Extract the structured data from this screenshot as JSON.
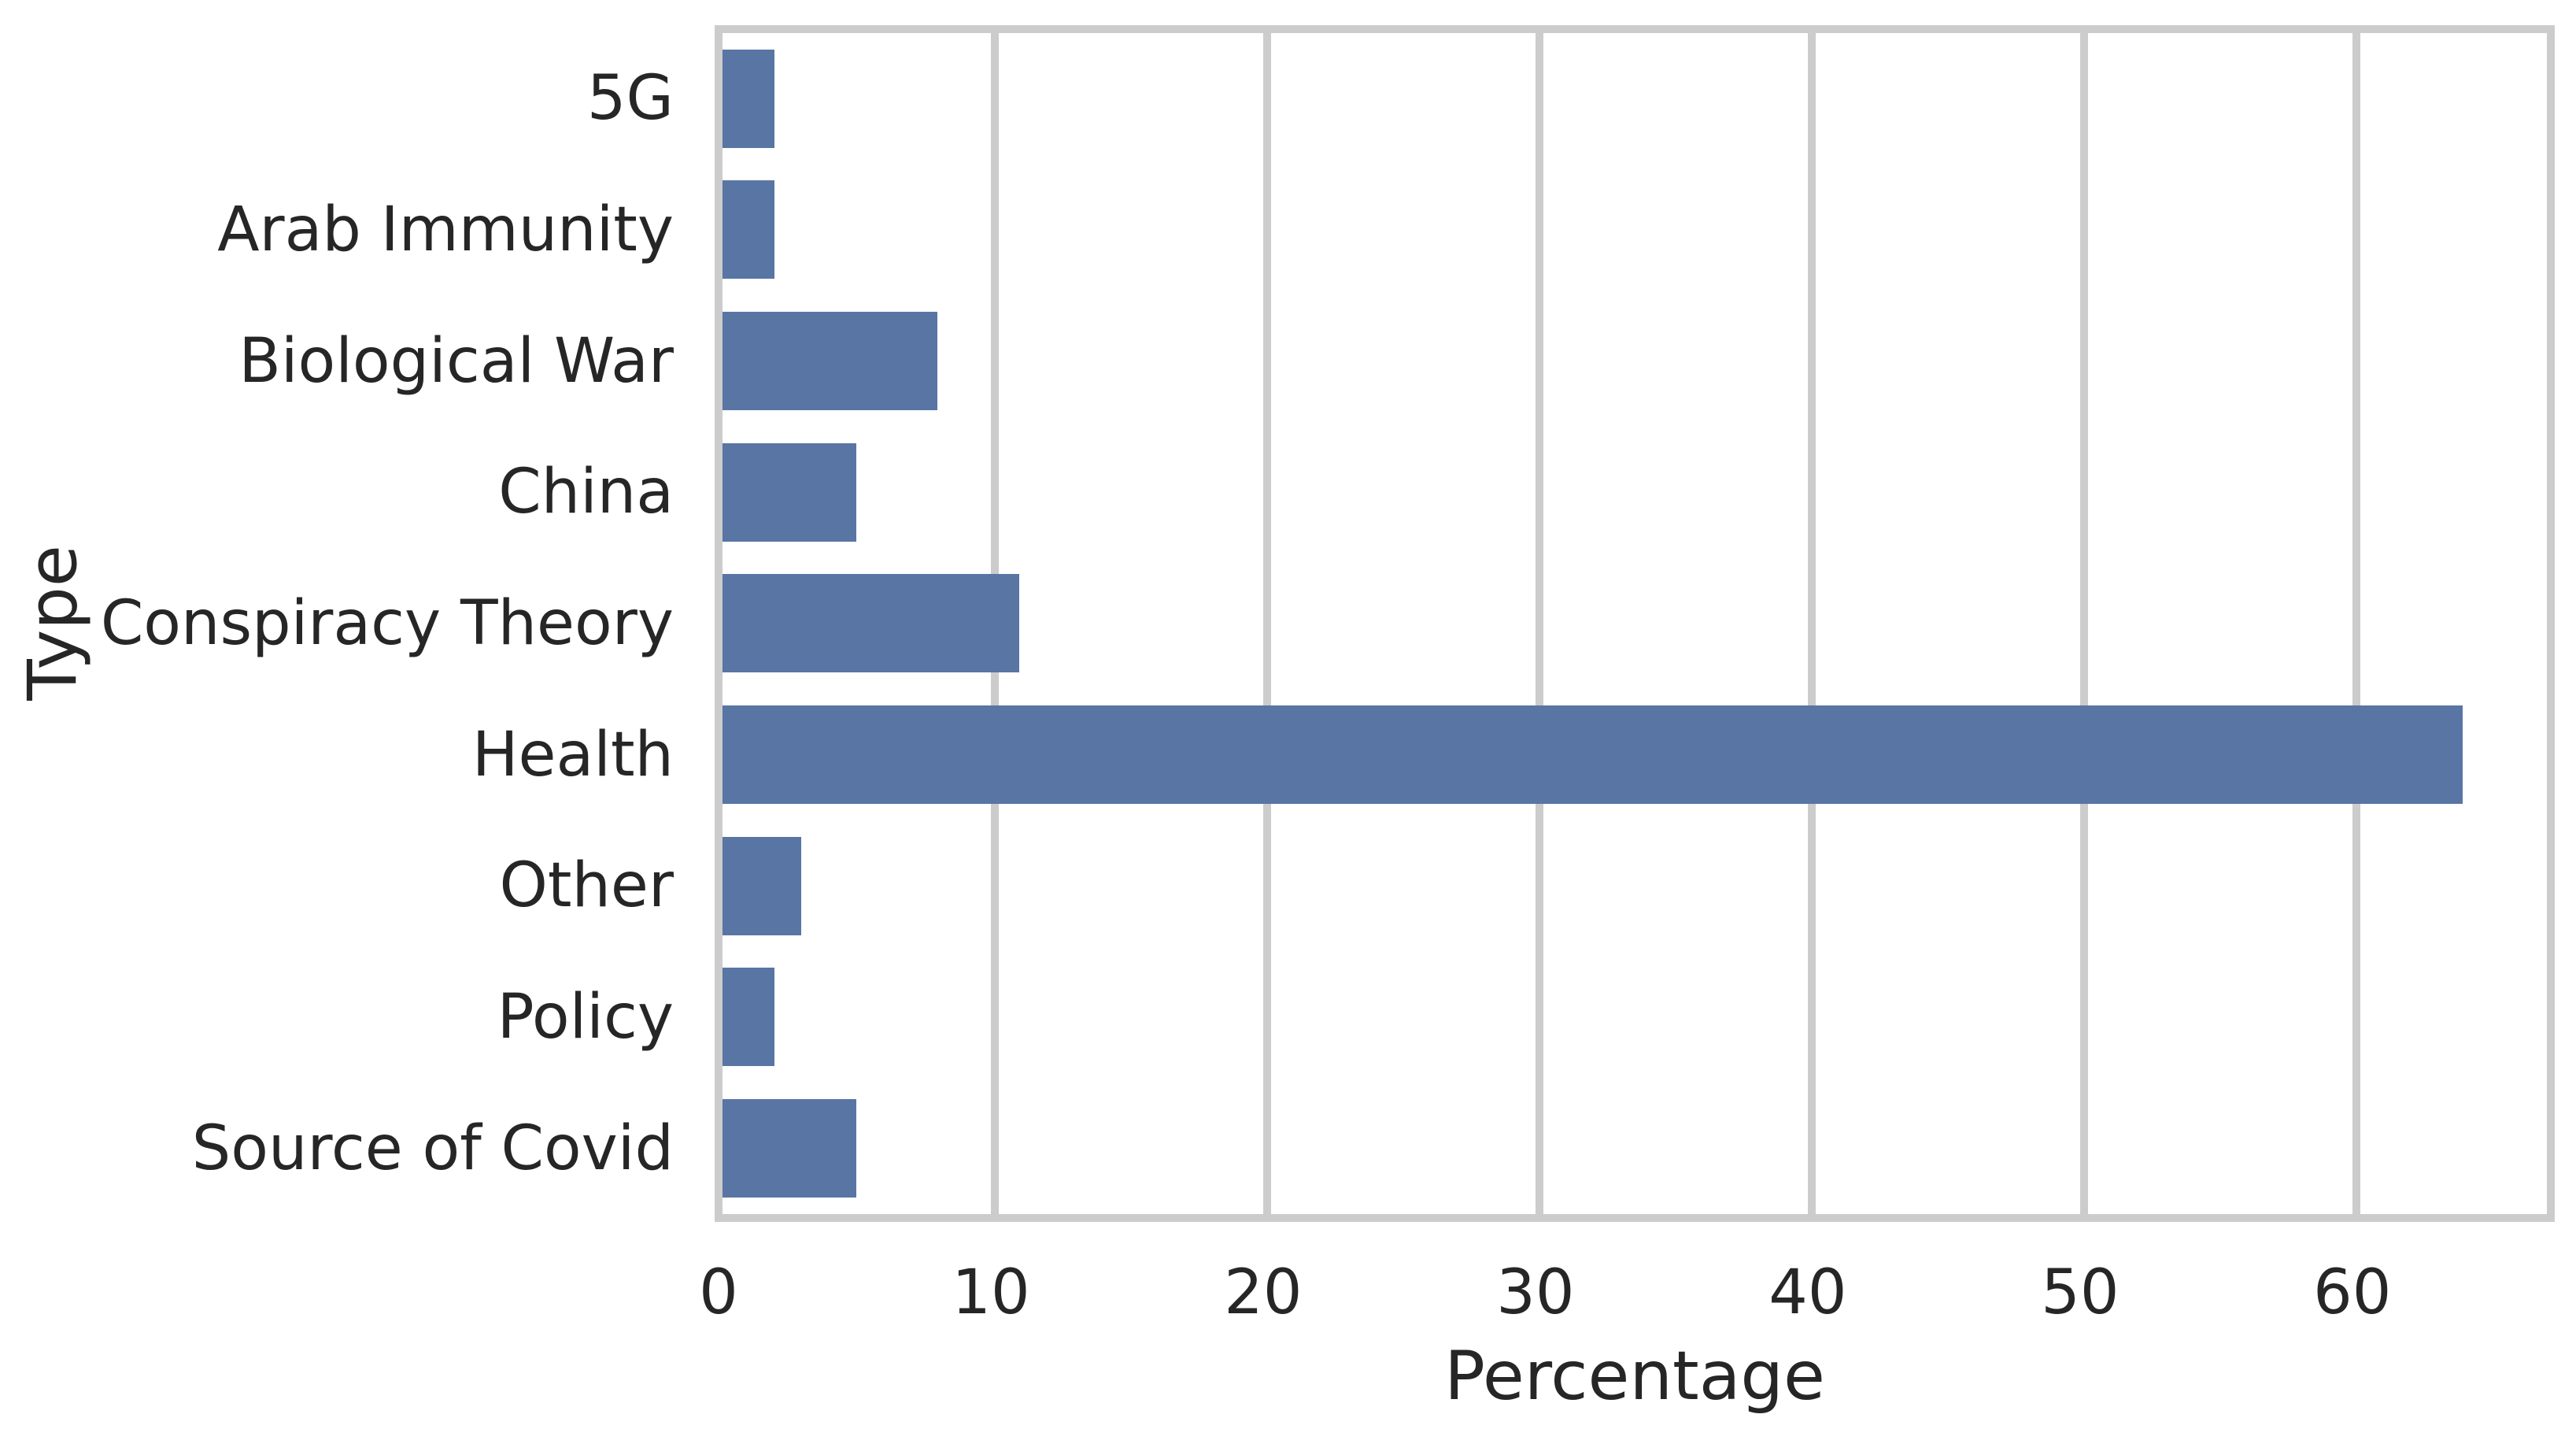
{
  "chart_data": {
    "type": "bar",
    "orientation": "horizontal",
    "xlabel": "Percentage",
    "ylabel": "Type",
    "categories": [
      "5G",
      "Arab Immunity",
      "Biological War",
      "China",
      "Conspiracy Theory",
      "Health",
      "Other",
      "Policy",
      "Source of Covid"
    ],
    "values": [
      1.9,
      1.9,
      7.9,
      4.9,
      10.9,
      63.9,
      2.9,
      1.9,
      4.9
    ],
    "xlim": [
      0,
      67
    ],
    "xticks": [
      0,
      10,
      20,
      30,
      40,
      50,
      60
    ],
    "grid": true,
    "legend": null,
    "colors": {
      "bar": "#5875a4",
      "grid": "#cccccc",
      "text": "#262626",
      "background": "#ffffff"
    }
  }
}
